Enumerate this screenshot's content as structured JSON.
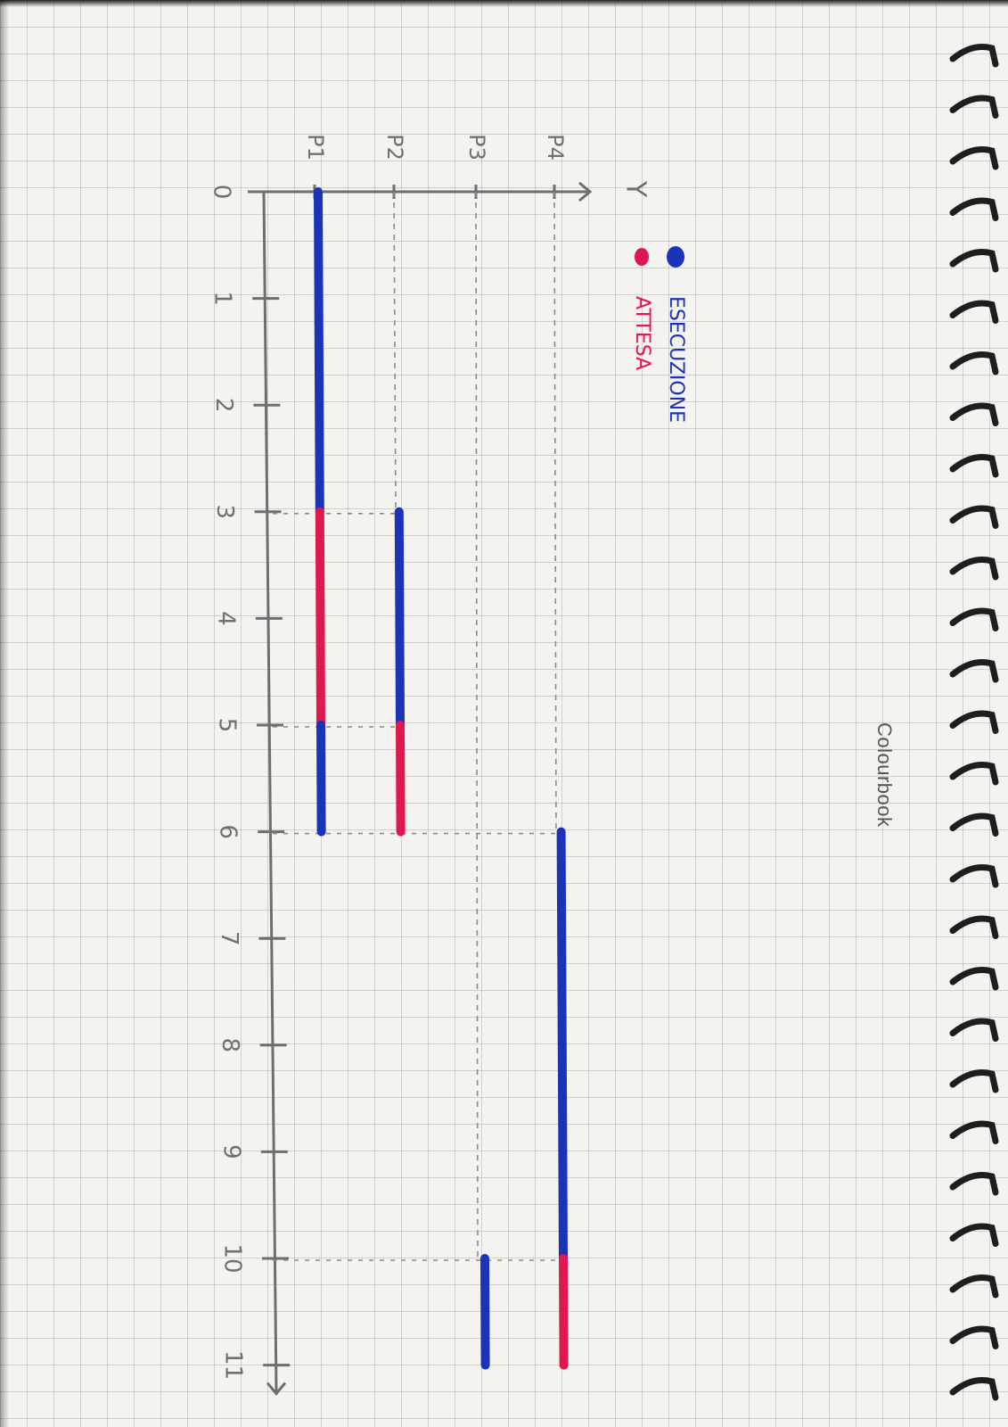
{
  "notebook": {
    "brand": "Colourbook"
  },
  "chart_data": {
    "type": "gantt",
    "orientation": "rotated",
    "x_axis": {
      "label": "",
      "ticks": [
        "0",
        "1",
        "2",
        "3",
        "4",
        "5",
        "6",
        "7",
        "8",
        "9",
        "10",
        "11"
      ],
      "range": [
        0,
        11
      ]
    },
    "y_axis": {
      "label": "Y",
      "categories": [
        "P1",
        "P2",
        "P3",
        "P4"
      ]
    },
    "legend": [
      {
        "label": "ESECUZIONE",
        "color": "#1a33b8"
      },
      {
        "label": "ATTESA",
        "color": "#e0184f"
      }
    ],
    "colors": {
      "execution": "#1a33b8",
      "waiting": "#e0184f",
      "axis": "#6e6e6e",
      "guide": "#8a8a8a"
    },
    "series": [
      {
        "process": "P1",
        "segments": [
          {
            "start": 0,
            "end": 3,
            "state": "execution"
          },
          {
            "start": 3,
            "end": 5,
            "state": "waiting"
          },
          {
            "start": 5,
            "end": 6,
            "state": "execution"
          }
        ]
      },
      {
        "process": "P2",
        "segments": [
          {
            "start": 3,
            "end": 5,
            "state": "execution"
          },
          {
            "start": 5,
            "end": 6,
            "state": "waiting"
          }
        ]
      },
      {
        "process": "P3",
        "segments": [
          {
            "start": 10,
            "end": 11,
            "state": "execution"
          }
        ]
      },
      {
        "process": "P4",
        "segments": [
          {
            "start": 6,
            "end": 10,
            "state": "execution"
          },
          {
            "start": 10,
            "end": 11,
            "state": "waiting"
          }
        ]
      }
    ]
  }
}
